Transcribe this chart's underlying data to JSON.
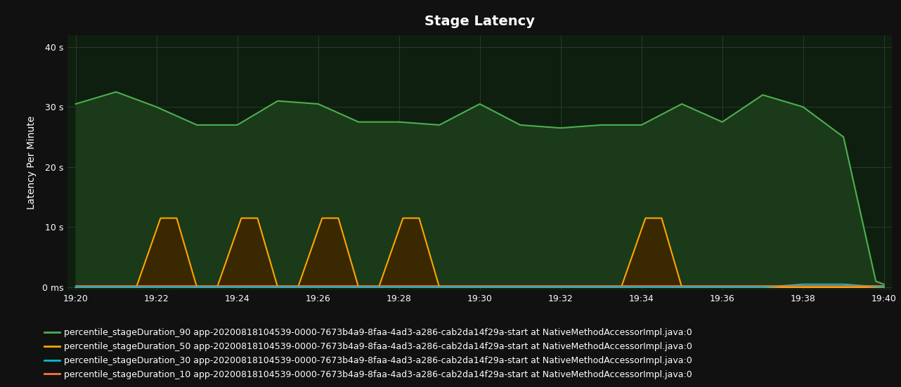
{
  "title": "Stage Latency",
  "ylabel": "Latency Per Minute",
  "background_color": "#111111",
  "plot_bg_color": "#0f1f0f",
  "grid_color": "#2a3a2a",
  "text_color": "#ffffff",
  "title_fontsize": 14,
  "label_fontsize": 10,
  "tick_fontsize": 9,
  "yticks": [
    0,
    10,
    20,
    30,
    40
  ],
  "ytick_labels": [
    "0 ms",
    "10 s",
    "20 s",
    "30 s",
    "40 s"
  ],
  "ylim": [
    -0.5,
    42
  ],
  "xtick_labels": [
    "19:20",
    "19:22",
    "19:24",
    "19:26",
    "19:28",
    "19:30",
    "19:32",
    "19:34",
    "19:36",
    "19:38",
    "19:40"
  ],
  "xtick_positions": [
    0,
    2,
    4,
    6,
    8,
    10,
    12,
    14,
    16,
    18,
    20
  ],
  "xlim": [
    -0.2,
    20.2
  ],
  "series": {
    "p90": {
      "color": "#4caf50",
      "fill_color": "#1a3a1a",
      "label": "percentile_stageDuration_90 app-20200818104539-0000-7673b4a9-8faa-4ad3-a286-cab2da14f29a-start at NativeMethodAccessorImpl.java:0",
      "x": [
        0,
        1,
        2,
        3,
        4,
        5,
        6,
        7,
        8,
        9,
        10,
        11,
        12,
        13,
        14,
        15,
        16,
        17,
        18,
        19,
        19.8,
        20
      ],
      "y": [
        30.5,
        32.5,
        30,
        27,
        27,
        31,
        30.5,
        27.5,
        27.5,
        27,
        30.5,
        27,
        26.5,
        27,
        27,
        30.5,
        27.5,
        32,
        30,
        25,
        1,
        0.5
      ]
    },
    "p50": {
      "color": "#ffa500",
      "fill_color": "#3a2800",
      "label": "percentile_stageDuration_50 app-20200818104539-0000-7673b4a9-8faa-4ad3-a286-cab2da14f29a-start at NativeMethodAccessorImpl.java:0",
      "x": [
        0,
        1.5,
        2.1,
        2.5,
        3.0,
        3.5,
        4.1,
        4.5,
        5.0,
        5.5,
        6.1,
        6.5,
        7.0,
        7.5,
        8.1,
        8.5,
        9.0,
        9.5,
        10.1,
        11.5,
        12.1,
        13.5,
        14.1,
        14.5,
        15.0,
        20
      ],
      "y": [
        0,
        0,
        11.5,
        11.5,
        0,
        0,
        11.5,
        11.5,
        0,
        0,
        11.5,
        11.5,
        0,
        0,
        11.5,
        11.5,
        0,
        0,
        0,
        0,
        0,
        0,
        11.5,
        11.5,
        0,
        0
      ]
    },
    "p30": {
      "color": "#00bcd4",
      "label": "percentile_stageDuration_30 app-20200818104539-0000-7673b4a9-8faa-4ad3-a286-cab2da14f29a-start at NativeMethodAccessorImpl.java:0",
      "x": [
        0,
        15,
        16,
        17,
        18,
        19,
        20
      ],
      "y": [
        0,
        0,
        0,
        0,
        0.5,
        0.5,
        0
      ]
    },
    "p10": {
      "color": "#ff7043",
      "label": "percentile_stageDuration_10 app-20200818104539-0000-7673b4a9-8faa-4ad3-a286-cab2da14f29a-start at NativeMethodAccessorImpl.java:0",
      "x": [
        0,
        20
      ],
      "y": [
        0.2,
        0.2
      ]
    }
  },
  "legend_fontsize": 9,
  "legend_bg": "#111111",
  "legend_text_color": "#ffffff"
}
